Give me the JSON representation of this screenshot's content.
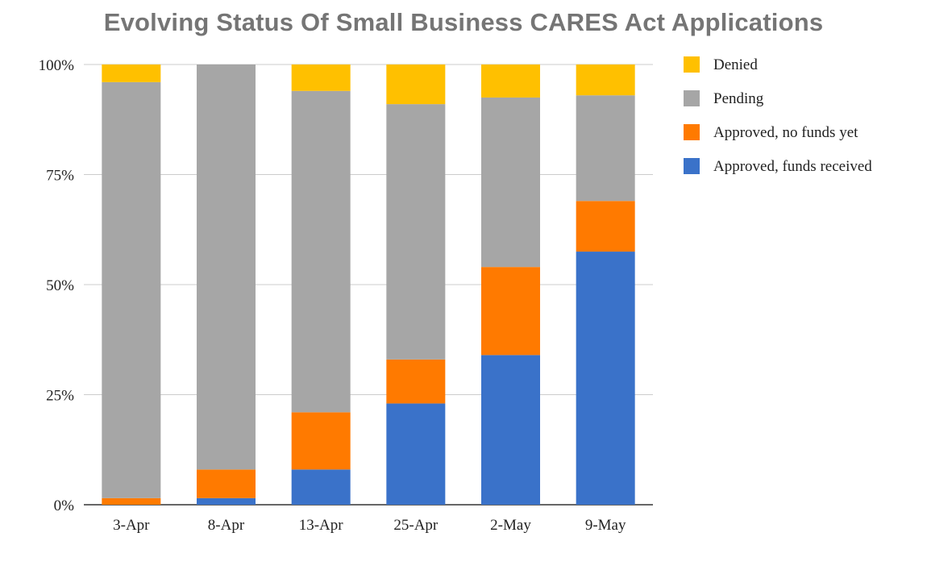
{
  "chart_data": {
    "type": "bar",
    "stacked": true,
    "normalized": true,
    "title": "Evolving Status Of Small Business CARES Act Applications",
    "xlabel": "",
    "ylabel": "",
    "categories": [
      "3-Apr",
      "8-Apr",
      "13-Apr",
      "25-Apr",
      "2-May",
      "9-May"
    ],
    "series": [
      {
        "name": "Approved, funds received",
        "color": "#3a72c9",
        "values": [
          0,
          1.5,
          8,
          23,
          34,
          57.5
        ]
      },
      {
        "name": "Approved, no funds yet",
        "color": "#ff7a00",
        "values": [
          1.5,
          6.5,
          13,
          10,
          20,
          11.5
        ]
      },
      {
        "name": "Pending",
        "color": "#a6a6a6",
        "values": [
          94.5,
          92,
          73,
          58,
          38.5,
          24
        ]
      },
      {
        "name": "Denied",
        "color": "#ffc000",
        "values": [
          4,
          0,
          6,
          9,
          7.5,
          7
        ]
      }
    ],
    "legend_order": [
      "Denied",
      "Pending",
      "Approved, no funds yet",
      "Approved, funds received"
    ],
    "y_ticks": [
      "0%",
      "25%",
      "50%",
      "75%",
      "100%"
    ],
    "ylim": [
      0,
      100
    ],
    "grid": true,
    "legend_position": "right"
  }
}
